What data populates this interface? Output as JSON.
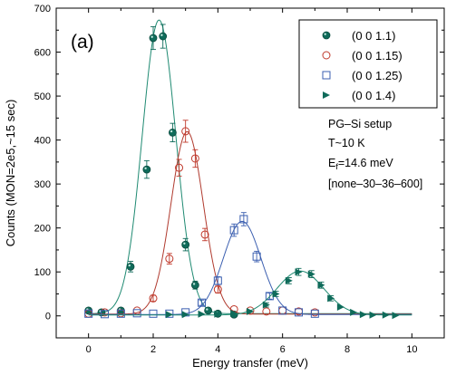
{
  "chart_data": {
    "type": "scatter",
    "panel_label": "(a)",
    "xlabel": "Energy transfer (meV)",
    "ylabel": "Counts (MON=2e5,~15 sec)",
    "xlim": [
      -1,
      11
    ],
    "ylim": [
      -50,
      700
    ],
    "xticks": [
      0,
      2,
      4,
      6,
      8,
      10
    ],
    "yticks": [
      0,
      100,
      200,
      300,
      400,
      500,
      600,
      700
    ],
    "grid": false,
    "legend_position": "top-right",
    "annotations": {
      "setup": "PG–Si setup",
      "temperature": "T~10 K",
      "ef_main": "E",
      "ef_sub": "f",
      "ef_value": "=14.6 meV",
      "collimation": "[none–30–36–600]"
    },
    "series": [
      {
        "name": "(0 0 1.1)",
        "marker": "filled-circle",
        "color": "#0f6b5a",
        "fit_color": "#1f8a72",
        "fit": {
          "amp": 668,
          "center": 2.18,
          "sigma": 0.52,
          "bg": 5
        },
        "points": [
          {
            "x": 0.0,
            "y": 12,
            "err": 4
          },
          {
            "x": 0.4,
            "y": 8,
            "err": 4
          },
          {
            "x": 1.0,
            "y": 12,
            "err": 5
          },
          {
            "x": 1.3,
            "y": 112,
            "err": 12
          },
          {
            "x": 1.8,
            "y": 333,
            "err": 20
          },
          {
            "x": 2.0,
            "y": 632,
            "err": 26
          },
          {
            "x": 2.3,
            "y": 636,
            "err": 27
          },
          {
            "x": 2.6,
            "y": 417,
            "err": 21
          },
          {
            "x": 3.0,
            "y": 162,
            "err": 14
          },
          {
            "x": 3.3,
            "y": 70,
            "err": 9
          },
          {
            "x": 3.7,
            "y": 12,
            "err": 5
          },
          {
            "x": 4.0,
            "y": 5,
            "err": 3
          },
          {
            "x": 4.5,
            "y": 3,
            "err": 3
          }
        ]
      },
      {
        "name": "(0 0 1.15)",
        "marker": "open-circle",
        "color": "#c0392b",
        "fit_color": "#b03a2e",
        "fit": {
          "amp": 415,
          "center": 3.05,
          "sigma": 0.5,
          "bg": 4
        },
        "points": [
          {
            "x": 0.0,
            "y": 5,
            "err": 3
          },
          {
            "x": 0.5,
            "y": 8,
            "err": 3
          },
          {
            "x": 1.0,
            "y": 6,
            "err": 3
          },
          {
            "x": 1.5,
            "y": 12,
            "err": 4
          },
          {
            "x": 2.0,
            "y": 40,
            "err": 7
          },
          {
            "x": 2.5,
            "y": 130,
            "err": 12
          },
          {
            "x": 2.8,
            "y": 337,
            "err": 19
          },
          {
            "x": 3.0,
            "y": 420,
            "err": 25
          },
          {
            "x": 3.3,
            "y": 358,
            "err": 20
          },
          {
            "x": 3.6,
            "y": 185,
            "err": 14
          },
          {
            "x": 4.0,
            "y": 60,
            "err": 8
          },
          {
            "x": 4.5,
            "y": 15,
            "err": 4
          },
          {
            "x": 5.0,
            "y": 12,
            "err": 4
          },
          {
            "x": 5.5,
            "y": 10,
            "err": 4
          },
          {
            "x": 6.0,
            "y": 12,
            "err": 4
          },
          {
            "x": 6.5,
            "y": 10,
            "err": 3
          },
          {
            "x": 7.0,
            "y": 8,
            "err": 3
          }
        ]
      },
      {
        "name": "(0 0 1.25)",
        "marker": "open-square",
        "color": "#3b5fb0",
        "fit_color": "#3b5fb0",
        "fit": {
          "amp": 212,
          "center": 4.75,
          "sigma": 0.58,
          "bg": 3
        },
        "points": [
          {
            "x": 0.0,
            "y": 5,
            "err": 3
          },
          {
            "x": 0.5,
            "y": 4,
            "err": 3
          },
          {
            "x": 1.0,
            "y": 5,
            "err": 3
          },
          {
            "x": 1.5,
            "y": 6,
            "err": 3
          },
          {
            "x": 2.0,
            "y": 5,
            "err": 3
          },
          {
            "x": 2.5,
            "y": 5,
            "err": 3
          },
          {
            "x": 3.0,
            "y": 8,
            "err": 3
          },
          {
            "x": 3.5,
            "y": 30,
            "err": 6
          },
          {
            "x": 4.0,
            "y": 80,
            "err": 9
          },
          {
            "x": 4.5,
            "y": 195,
            "err": 14
          },
          {
            "x": 4.8,
            "y": 220,
            "err": 15
          },
          {
            "x": 5.2,
            "y": 135,
            "err": 12
          },
          {
            "x": 5.6,
            "y": 45,
            "err": 7
          },
          {
            "x": 6.0,
            "y": 12,
            "err": 4
          },
          {
            "x": 6.5,
            "y": 8,
            "err": 3
          },
          {
            "x": 7.0,
            "y": 5,
            "err": 3
          }
        ]
      },
      {
        "name": "(0 0 1.4)",
        "marker": "right-triangle",
        "color": "#0f6b5a",
        "fit_color": "#1f8a72",
        "fit": {
          "amp": 100,
          "center": 6.55,
          "sigma": 0.72,
          "bg": 2
        },
        "points": [
          {
            "x": 2.5,
            "y": 3,
            "err": 2
          },
          {
            "x": 3.0,
            "y": 3,
            "err": 2
          },
          {
            "x": 3.5,
            "y": 4,
            "err": 2
          },
          {
            "x": 4.0,
            "y": 4,
            "err": 2
          },
          {
            "x": 4.5,
            "y": 6,
            "err": 3
          },
          {
            "x": 5.0,
            "y": 10,
            "err": 3
          },
          {
            "x": 5.5,
            "y": 25,
            "err": 5
          },
          {
            "x": 5.8,
            "y": 50,
            "err": 6
          },
          {
            "x": 6.2,
            "y": 80,
            "err": 7
          },
          {
            "x": 6.5,
            "y": 100,
            "err": 8
          },
          {
            "x": 6.9,
            "y": 95,
            "err": 8
          },
          {
            "x": 7.2,
            "y": 70,
            "err": 7
          },
          {
            "x": 7.5,
            "y": 40,
            "err": 6
          },
          {
            "x": 7.8,
            "y": 20,
            "err": 4
          },
          {
            "x": 8.2,
            "y": 8,
            "err": 3
          },
          {
            "x": 8.5,
            "y": 3,
            "err": 2
          },
          {
            "x": 8.8,
            "y": 2,
            "err": 2
          },
          {
            "x": 9.2,
            "y": 2,
            "err": 2
          },
          {
            "x": 9.5,
            "y": 1,
            "err": 2
          }
        ]
      }
    ]
  }
}
